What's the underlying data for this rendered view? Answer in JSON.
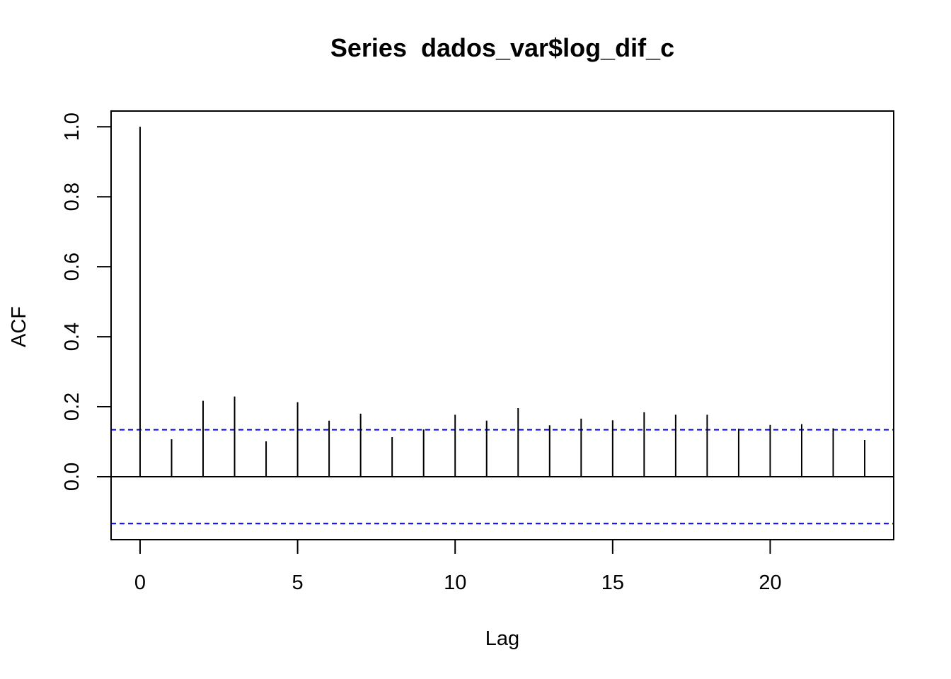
{
  "chart_data": {
    "type": "bar",
    "title": "Series  dados_var$log_dif_c",
    "xlabel": "Lag",
    "ylabel": "ACF",
    "x": [
      0,
      1,
      2,
      3,
      4,
      5,
      6,
      7,
      8,
      9,
      10,
      11,
      12,
      13,
      14,
      15,
      16,
      17,
      18,
      19,
      20,
      21,
      22,
      23
    ],
    "values": [
      1.0,
      0.107,
      0.217,
      0.229,
      0.101,
      0.213,
      0.16,
      0.18,
      0.113,
      0.135,
      0.177,
      0.16,
      0.196,
      0.147,
      0.166,
      0.161,
      0.184,
      0.177,
      0.177,
      0.137,
      0.148,
      0.15,
      0.138,
      0.105
    ],
    "confidence_band": 0.134,
    "xlim": [
      -0.92,
      23.92
    ],
    "ylim": [
      -0.18,
      1.045
    ],
    "x_ticks": [
      0,
      5,
      10,
      15,
      20
    ],
    "y_ticks": [
      0.0,
      0.2,
      0.4,
      0.6,
      0.8,
      1.0
    ],
    "x_tick_labels": [
      "0",
      "5",
      "10",
      "15",
      "20"
    ],
    "y_tick_labels": [
      "0.0",
      "0.2",
      "0.4",
      "0.6",
      "0.8",
      "1.0"
    ],
    "grid": false,
    "legend": "none",
    "colors": {
      "spike": "#000000",
      "confidence_band": "#0000ff",
      "axis": "#000000",
      "background": "#ffffff"
    }
  }
}
